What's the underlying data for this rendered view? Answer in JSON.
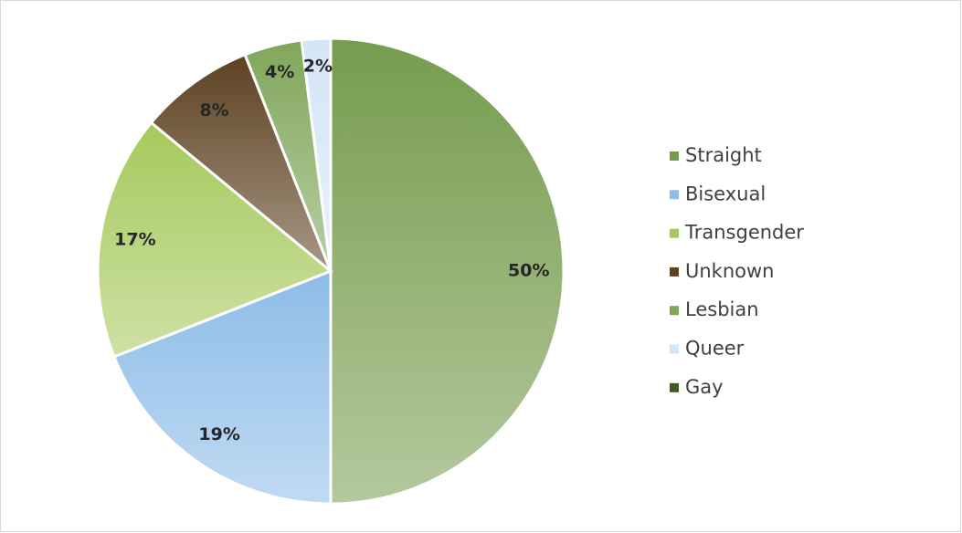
{
  "chart_data": {
    "type": "pie",
    "categories": [
      "Straight",
      "Bisexual",
      "Transgender",
      "Unknown",
      "Lesbian",
      "Queer",
      "Gay"
    ],
    "values": [
      50,
      19,
      17,
      8,
      4,
      2,
      0
    ],
    "value_labels": [
      "50%",
      "19%",
      "17%",
      "8%",
      "4%",
      "2%",
      null
    ],
    "colors": [
      "#769c4e",
      "#8dbce8",
      "#a5c95c",
      "#5e4222",
      "#80a65a",
      "#d4e5f6",
      "#3d5c22"
    ],
    "legend": "right"
  }
}
